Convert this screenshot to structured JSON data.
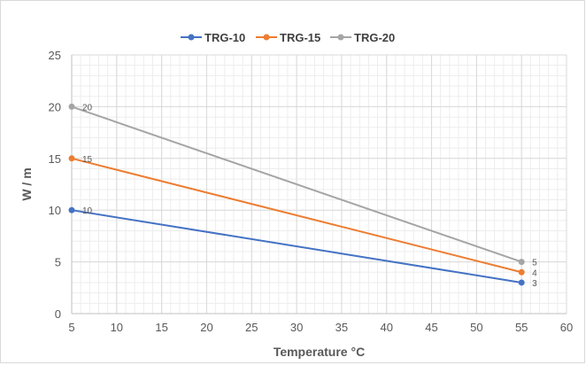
{
  "chart_data": {
    "type": "line",
    "title": "",
    "xlabel": "Temperature °C",
    "ylabel": "W / m",
    "xlim": [
      5,
      60
    ],
    "ylim": [
      0,
      25
    ],
    "x_ticks": [
      5,
      10,
      15,
      20,
      25,
      30,
      35,
      40,
      45,
      50,
      55,
      60
    ],
    "y_ticks": [
      0,
      5,
      10,
      15,
      20,
      25
    ],
    "minor_grid_x_step": 1,
    "minor_grid_y_step": 1,
    "grid": true,
    "legend_position": "top",
    "series": [
      {
        "name": "TRG-10",
        "color": "#4472c4",
        "x": [
          5,
          55
        ],
        "y": [
          10,
          3
        ],
        "labels": [
          "10",
          "3"
        ]
      },
      {
        "name": "TRG-15",
        "color": "#ed7d31",
        "x": [
          5,
          55
        ],
        "y": [
          15,
          4
        ],
        "labels": [
          "15",
          "4"
        ]
      },
      {
        "name": "TRG-20",
        "color": "#a5a5a5",
        "x": [
          5,
          55
        ],
        "y": [
          20,
          5
        ],
        "labels": [
          "20",
          "5"
        ]
      }
    ]
  }
}
